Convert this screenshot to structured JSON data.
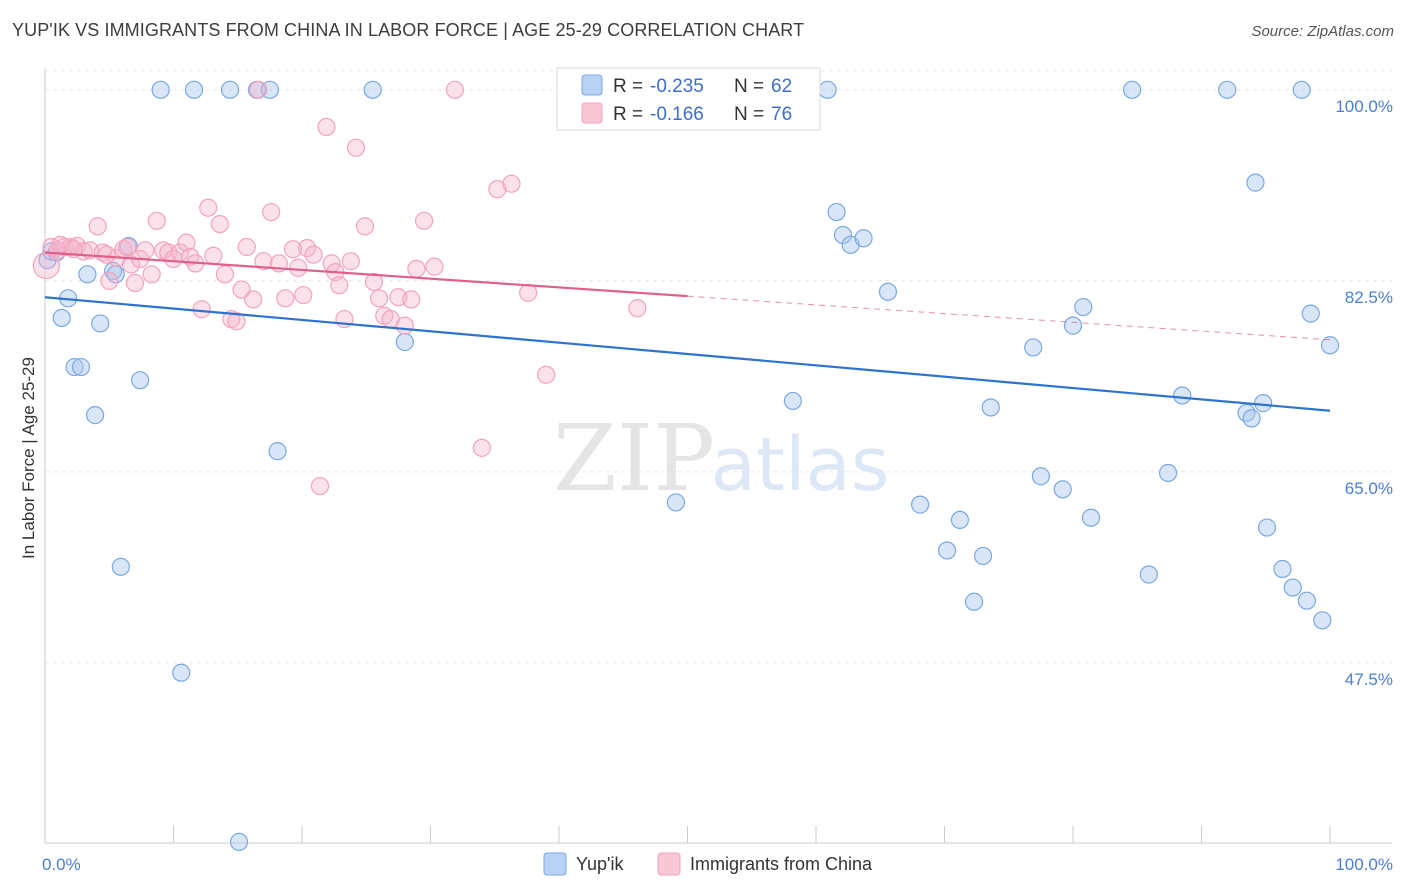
{
  "title": "YUP'IK VS IMMIGRANTS FROM CHINA IN LABOR FORCE | AGE 25-29 CORRELATION CHART",
  "source": "Source: ZipAtlas.com",
  "watermark": {
    "zip": "ZIP",
    "atlas": "atlas"
  },
  "chart_data": {
    "type": "scatter",
    "ylabel": "In Labor Force | Age 25-29",
    "xlim": [
      0,
      100
    ],
    "ylim": [
      31,
      102
    ],
    "x_tick_labels": [
      {
        "value": 0,
        "label": "0.0%"
      },
      {
        "value": 100,
        "label": "100.0%"
      }
    ],
    "y_ticks": [
      {
        "value": 100,
        "label": "100.0%"
      },
      {
        "value": 82.5,
        "label": "82.5%"
      },
      {
        "value": 65,
        "label": "65.0%"
      },
      {
        "value": 47.5,
        "label": "47.5%"
      }
    ],
    "grid": true,
    "legend_position": "top-center",
    "stats": [
      {
        "r_label": "R =",
        "r_value": "-0.235",
        "n_label": "N =",
        "n_value": "62"
      },
      {
        "r_label": "R =",
        "r_value": "-0.166",
        "n_label": "N =",
        "n_value": "76"
      }
    ],
    "series": [
      {
        "name": "Yup'ik",
        "color": "#7aa8e6",
        "trend_color": "#2f73d0",
        "trend": {
          "x0": 0,
          "y0": 81.0,
          "x1": 100,
          "y1": 70.6,
          "solid_to": 100
        },
        "points": [
          [
            0.2,
            84.4
          ],
          [
            0.5,
            85.2
          ],
          [
            1.3,
            79.1
          ],
          [
            1.8,
            80.9
          ],
          [
            2.3,
            74.6
          ],
          [
            2.8,
            74.6
          ],
          [
            3.3,
            83.1
          ],
          [
            3.9,
            70.2
          ],
          [
            4.3,
            78.6
          ],
          [
            5.3,
            83.4
          ],
          [
            5.5,
            83.1
          ],
          [
            5.9,
            56.3
          ],
          [
            6.5,
            85.7
          ],
          [
            7.4,
            73.4
          ],
          [
            9.0,
            100
          ],
          [
            10.6,
            46.6
          ],
          [
            11.6,
            100
          ],
          [
            14.4,
            100
          ],
          [
            15.1,
            31.1
          ],
          [
            16.5,
            100
          ],
          [
            17.5,
            100
          ],
          [
            18.1,
            66.9
          ],
          [
            25.5,
            100
          ],
          [
            28.0,
            76.9
          ],
          [
            49.1,
            62.2
          ],
          [
            58.2,
            71.5
          ],
          [
            60.9,
            100
          ],
          [
            61.6,
            88.8
          ],
          [
            62.1,
            86.7
          ],
          [
            62.7,
            85.8
          ],
          [
            63.7,
            86.4
          ],
          [
            65.6,
            81.5
          ],
          [
            68.1,
            62.0
          ],
          [
            70.2,
            57.8
          ],
          [
            71.2,
            60.6
          ],
          [
            72.3,
            53.1
          ],
          [
            73.0,
            57.3
          ],
          [
            73.6,
            70.9
          ],
          [
            76.9,
            76.4
          ],
          [
            77.5,
            64.6
          ],
          [
            79.2,
            63.4
          ],
          [
            80.0,
            78.4
          ],
          [
            80.8,
            80.1
          ],
          [
            81.4,
            60.8
          ],
          [
            84.6,
            100
          ],
          [
            85.9,
            55.6
          ],
          [
            87.4,
            64.9
          ],
          [
            88.5,
            72.0
          ],
          [
            92.0,
            100
          ],
          [
            93.5,
            70.4
          ],
          [
            93.9,
            69.9
          ],
          [
            94.2,
            91.5
          ],
          [
            94.8,
            71.3
          ],
          [
            95.1,
            59.9
          ],
          [
            96.3,
            56.1
          ],
          [
            97.1,
            54.4
          ],
          [
            97.8,
            100
          ],
          [
            98.2,
            53.2
          ],
          [
            98.5,
            79.5
          ],
          [
            99.4,
            51.4
          ],
          [
            100,
            76.6
          ],
          [
            0.9,
            85.1
          ]
        ]
      },
      {
        "name": "Immigrants from China",
        "color": "#f4a3bd",
        "trend_color": "#e0608a",
        "trend": {
          "x0": 0,
          "y0": 85.1,
          "x1": 100,
          "y1": 77.1,
          "solid_to": 50
        },
        "points": [
          [
            0.1,
            83.9
          ],
          [
            0.5,
            85.6
          ],
          [
            1.0,
            85.3
          ],
          [
            1.5,
            85.6
          ],
          [
            2.0,
            85.6
          ],
          [
            2.5,
            85.7
          ],
          [
            3.0,
            85.2
          ],
          [
            3.5,
            85.3
          ],
          [
            4.1,
            87.5
          ],
          [
            4.5,
            85.1
          ],
          [
            5.0,
            82.5
          ],
          [
            5.6,
            84.6
          ],
          [
            6.1,
            85.4
          ],
          [
            6.7,
            84.0
          ],
          [
            7.0,
            82.3
          ],
          [
            7.4,
            84.5
          ],
          [
            7.8,
            85.3
          ],
          [
            8.3,
            83.1
          ],
          [
            8.7,
            88.0
          ],
          [
            9.2,
            85.3
          ],
          [
            9.6,
            85.1
          ],
          [
            10.0,
            84.5
          ],
          [
            10.5,
            85.1
          ],
          [
            11.0,
            86.0
          ],
          [
            11.3,
            84.7
          ],
          [
            11.7,
            84.1
          ],
          [
            12.2,
            79.9
          ],
          [
            12.7,
            89.2
          ],
          [
            13.1,
            84.8
          ],
          [
            13.6,
            87.7
          ],
          [
            14.0,
            83.1
          ],
          [
            14.5,
            79.0
          ],
          [
            14.9,
            78.8
          ],
          [
            15.3,
            81.7
          ],
          [
            15.7,
            85.6
          ],
          [
            16.2,
            80.8
          ],
          [
            16.6,
            100
          ],
          [
            17.0,
            84.3
          ],
          [
            17.6,
            88.8
          ],
          [
            18.2,
            84.1
          ],
          [
            18.7,
            80.9
          ],
          [
            19.3,
            85.4
          ],
          [
            19.7,
            83.7
          ],
          [
            20.1,
            81.2
          ],
          [
            20.4,
            85.5
          ],
          [
            20.9,
            84.9
          ],
          [
            21.4,
            63.7
          ],
          [
            21.9,
            96.6
          ],
          [
            22.3,
            84.1
          ],
          [
            22.6,
            83.3
          ],
          [
            22.9,
            82.1
          ],
          [
            23.3,
            79.0
          ],
          [
            23.8,
            84.3
          ],
          [
            24.2,
            94.7
          ],
          [
            24.9,
            87.5
          ],
          [
            25.6,
            82.4
          ],
          [
            26.0,
            80.9
          ],
          [
            26.4,
            79.3
          ],
          [
            26.9,
            79.0
          ],
          [
            27.5,
            81.0
          ],
          [
            28.0,
            78.4
          ],
          [
            28.5,
            80.8
          ],
          [
            28.9,
            83.6
          ],
          [
            29.5,
            88.0
          ],
          [
            30.3,
            83.8
          ],
          [
            31.9,
            100
          ],
          [
            34.0,
            67.2
          ],
          [
            35.2,
            90.9
          ],
          [
            36.3,
            91.4
          ],
          [
            37.6,
            81.4
          ],
          [
            39.0,
            73.9
          ],
          [
            46.1,
            80.0
          ],
          [
            1.2,
            85.8
          ],
          [
            2.2,
            85.4
          ],
          [
            4.8,
            84.9
          ],
          [
            6.4,
            85.6
          ]
        ]
      }
    ]
  }
}
